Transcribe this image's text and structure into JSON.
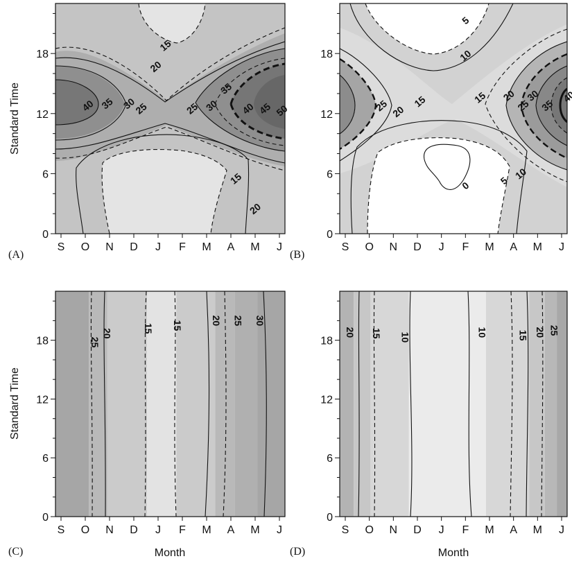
{
  "chart_data": [
    {
      "type": "heatmap",
      "panel_label": "(A)",
      "xlabel": "",
      "ylabel": "Standard Time",
      "x_categories": [
        "S",
        "O",
        "N",
        "D",
        "J",
        "F",
        "M",
        "A",
        "M",
        "J"
      ],
      "yticks": [
        0,
        6,
        12,
        18
      ],
      "ylim": [
        0,
        23
      ],
      "contour_levels": [
        15,
        20,
        25,
        30,
        35,
        40,
        45,
        50
      ],
      "contour_labels": [
        {
          "text": "15",
          "month": 4.3,
          "hour": 18.8
        },
        {
          "text": "20",
          "month": 3.9,
          "hour": 16.7
        },
        {
          "text": "25",
          "month": 3.3,
          "hour": 12.5
        },
        {
          "text": "30",
          "month": 2.8,
          "hour": 13.0
        },
        {
          "text": "35",
          "month": 1.9,
          "hour": 13.0
        },
        {
          "text": "40",
          "month": 1.1,
          "hour": 12.8
        },
        {
          "text": "25",
          "month": 5.4,
          "hour": 12.5
        },
        {
          "text": "30",
          "month": 6.2,
          "hour": 12.8
        },
        {
          "text": "35",
          "month": 6.8,
          "hour": 14.5
        },
        {
          "text": "40",
          "month": 7.7,
          "hour": 12.5
        },
        {
          "text": "45",
          "month": 8.4,
          "hour": 12.5
        },
        {
          "text": "50",
          "month": 9.1,
          "hour": 12.3
        },
        {
          "text": "15",
          "month": 7.2,
          "hour": 5.5
        },
        {
          "text": "20",
          "month": 8.0,
          "hour": 2.5
        }
      ],
      "shading": {
        "dark_center_month": [
          0,
          9
        ],
        "dark_center_hour": 13.5
      }
    },
    {
      "type": "heatmap",
      "panel_label": "(B)",
      "xlabel": "",
      "ylabel": "",
      "x_categories": [
        "S",
        "O",
        "N",
        "D",
        "J",
        "F",
        "M",
        "A",
        "M",
        "J"
      ],
      "yticks": [
        0,
        6,
        12,
        18
      ],
      "ylim": [
        0,
        23
      ],
      "contour_levels": [
        0,
        5,
        10,
        15,
        20,
        25,
        30,
        35,
        40
      ],
      "contour_labels": [
        {
          "text": "5",
          "month": 5.0,
          "hour": 21.3
        },
        {
          "text": "10",
          "month": 5.0,
          "hour": 17.8
        },
        {
          "text": "15",
          "month": 3.1,
          "hour": 13.2
        },
        {
          "text": "15",
          "month": 5.6,
          "hour": 13.6
        },
        {
          "text": "20",
          "month": 2.2,
          "hour": 12.2
        },
        {
          "text": "25",
          "month": 1.5,
          "hour": 12.8
        },
        {
          "text": "20",
          "month": 6.8,
          "hour": 13.8
        },
        {
          "text": "25",
          "month": 7.4,
          "hour": 12.8
        },
        {
          "text": "30",
          "month": 7.8,
          "hour": 13.8
        },
        {
          "text": "35",
          "month": 8.4,
          "hour": 12.8
        },
        {
          "text": "40",
          "month": 9.3,
          "hour": 13.7
        },
        {
          "text": "0",
          "month": 5.0,
          "hour": 4.8
        },
        {
          "text": "5",
          "month": 6.6,
          "hour": 5.3
        },
        {
          "text": "10",
          "month": 7.3,
          "hour": 6.0
        }
      ]
    },
    {
      "type": "heatmap",
      "panel_label": "(C)",
      "xlabel": "Month",
      "ylabel": "Standard Time",
      "x_categories": [
        "S",
        "O",
        "N",
        "D",
        "J",
        "F",
        "M",
        "A",
        "M",
        "J"
      ],
      "yticks": [
        0,
        6,
        12,
        18
      ],
      "ylim": [
        0,
        23
      ],
      "contour_levels": [
        15,
        20,
        25,
        30
      ],
      "contour_labels": [
        {
          "text": "25",
          "month": 1.4,
          "hour": 17.8
        },
        {
          "text": "20",
          "month": 1.9,
          "hour": 18.7
        },
        {
          "text": "15",
          "month": 3.6,
          "hour": 19.2
        },
        {
          "text": "15",
          "month": 4.8,
          "hour": 19.5
        },
        {
          "text": "20",
          "month": 6.4,
          "hour": 20.0
        },
        {
          "text": "25",
          "month": 7.3,
          "hour": 20.0
        },
        {
          "text": "30",
          "month": 8.2,
          "hour": 20.0
        }
      ],
      "bands": [
        {
          "from": -0.5,
          "to": 1.15,
          "color": "#a6a6a6"
        },
        {
          "from": 1.15,
          "to": 1.9,
          "color": "#b9b9b9"
        },
        {
          "from": 1.9,
          "to": 3.55,
          "color": "#cbcbcb"
        },
        {
          "from": 3.55,
          "to": 4.75,
          "color": "#e3e3e3"
        },
        {
          "from": 4.75,
          "to": 6.35,
          "color": "#cbcbcb"
        },
        {
          "from": 6.35,
          "to": 7.15,
          "color": "#b9b9b9"
        },
        {
          "from": 7.15,
          "to": 8.1,
          "color": "#b0b0b0"
        },
        {
          "from": 8.1,
          "to": 9.5,
          "color": "#a6a6a6"
        }
      ]
    },
    {
      "type": "heatmap",
      "panel_label": "(D)",
      "xlabel": "Month",
      "ylabel": "",
      "x_categories": [
        "S",
        "O",
        "N",
        "D",
        "J",
        "F",
        "M",
        "A",
        "M",
        "J"
      ],
      "yticks": [
        0,
        6,
        12,
        18
      ],
      "ylim": [
        0,
        23
      ],
      "contour_levels": [
        10,
        15,
        20,
        25
      ],
      "contour_labels": [
        {
          "text": "20",
          "month": 0.2,
          "hour": 18.8
        },
        {
          "text": "15",
          "month": 1.3,
          "hour": 18.7
        },
        {
          "text": "10",
          "month": 2.5,
          "hour": 18.3
        },
        {
          "text": "10",
          "month": 5.7,
          "hour": 18.8
        },
        {
          "text": "15",
          "month": 7.4,
          "hour": 18.5
        },
        {
          "text": "20",
          "month": 8.1,
          "hour": 18.8
        },
        {
          "text": "25",
          "month": 8.7,
          "hour": 19.0
        }
      ],
      "bands": [
        {
          "from": -0.5,
          "to": 0.35,
          "color": "#b3b3b3"
        },
        {
          "from": 0.35,
          "to": 1.05,
          "color": "#c7c7c7"
        },
        {
          "from": 1.05,
          "to": 2.65,
          "color": "#d7d7d7"
        },
        {
          "from": 2.65,
          "to": 5.85,
          "color": "#ebebeb"
        },
        {
          "from": 5.85,
          "to": 7.65,
          "color": "#d7d7d7"
        },
        {
          "from": 7.65,
          "to": 8.3,
          "color": "#c7c7c7"
        },
        {
          "from": 8.3,
          "to": 8.8,
          "color": "#b8b8b8"
        },
        {
          "from": 8.8,
          "to": 9.5,
          "color": "#a8a8a8"
        }
      ]
    }
  ]
}
